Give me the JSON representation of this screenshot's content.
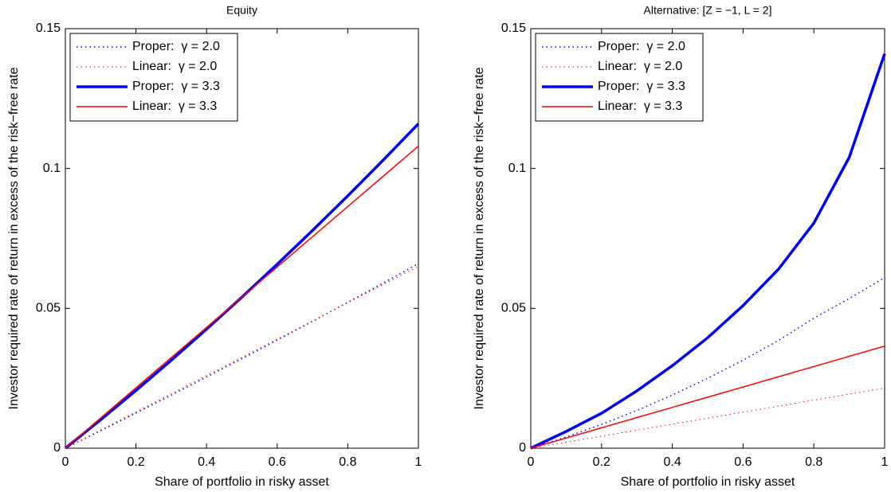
{
  "chart_data": [
    {
      "type": "line",
      "title": "Equity",
      "x_label": "Share of portfolio in risky asset",
      "y_label": "Investor required rate of return in excess of the risk−free rate",
      "x": [
        0,
        0.1,
        0.2,
        0.3,
        0.4,
        0.5,
        0.6,
        0.7,
        0.8,
        0.9,
        1
      ],
      "xlim": [
        0,
        1
      ],
      "xticks": [
        0,
        0.2,
        0.4,
        0.6,
        0.8,
        1
      ],
      "ylim": [
        0,
        0.15
      ],
      "yticks": [
        0,
        0.05,
        0.1,
        0.15
      ],
      "grid": false,
      "legend": "upper-left",
      "series": [
        {
          "name": "Proper:  γ = 2.0",
          "color": "#0000ff",
          "dash": "dotted",
          "width": 1.5,
          "values": [
            0,
            0.00624,
            0.01256,
            0.01896,
            0.02544,
            0.032,
            0.03864,
            0.04536,
            0.05216,
            0.05904,
            0.066
          ]
        },
        {
          "name": "Linear:  γ = 2.0",
          "color": "#ff0000",
          "dash": "dotted",
          "width": 1,
          "values": [
            0,
            0.0065,
            0.013,
            0.0195,
            0.026,
            0.0325,
            0.039,
            0.0455,
            0.052,
            0.0585,
            0.065
          ]
        },
        {
          "name": "Proper:  γ = 3.3",
          "color": "#0000ff",
          "dash": "solid",
          "width": 3.5,
          "values": [
            0,
            0.01016,
            0.02064,
            0.03144,
            0.04256,
            0.054,
            0.06576,
            0.07784,
            0.09024,
            0.10296,
            0.116
          ]
        },
        {
          "name": "Linear:  γ = 3.3",
          "color": "#ff0000",
          "dash": "solid",
          "width": 1.5,
          "values": [
            0,
            0.0108,
            0.0216,
            0.0324,
            0.0432,
            0.054,
            0.0648,
            0.0756,
            0.0864,
            0.0972,
            0.108
          ]
        }
      ]
    },
    {
      "type": "line",
      "title": "Alternative:  [Z = −1, L =  2]",
      "x_label": "Share of portfolio in risky asset",
      "y_label": "Investor required rate of return in excess of the risk−free rate",
      "x": [
        0,
        0.1,
        0.2,
        0.3,
        0.4,
        0.5,
        0.6,
        0.7,
        0.8,
        0.9,
        1
      ],
      "xlim": [
        0,
        1
      ],
      "xticks": [
        0,
        0.2,
        0.4,
        0.6,
        0.8,
        1
      ],
      "ylim": [
        0,
        0.15
      ],
      "yticks": [
        0,
        0.05,
        0.1,
        0.15
      ],
      "grid": false,
      "legend": "upper-left",
      "series": [
        {
          "name": "Proper:  γ = 2.0",
          "color": "#0000ff",
          "dash": "dotted",
          "width": 1.5,
          "values": [
            0,
            0.004,
            0.0085,
            0.0135,
            0.019,
            0.025,
            0.0315,
            0.0385,
            0.0465,
            0.0535,
            0.061
          ]
        },
        {
          "name": "Linear:  γ = 2.0",
          "color": "#ff0000",
          "dash": "dotted",
          "width": 1,
          "values": [
            0,
            0.00215,
            0.0043,
            0.00645,
            0.0086,
            0.01075,
            0.0129,
            0.01505,
            0.0172,
            0.01935,
            0.0215
          ]
        },
        {
          "name": "Proper:  γ = 3.3",
          "color": "#0000ff",
          "dash": "solid",
          "width": 3.5,
          "values": [
            0,
            0.006,
            0.0125,
            0.0205,
            0.0295,
            0.0395,
            0.051,
            0.064,
            0.0805,
            0.104,
            0.141
          ]
        },
        {
          "name": "Linear:  γ = 3.3",
          "color": "#ff0000",
          "dash": "solid",
          "width": 1.5,
          "values": [
            0,
            0.00365,
            0.0073,
            0.01095,
            0.0146,
            0.01825,
            0.0219,
            0.02555,
            0.0292,
            0.03285,
            0.0365
          ]
        }
      ]
    }
  ]
}
